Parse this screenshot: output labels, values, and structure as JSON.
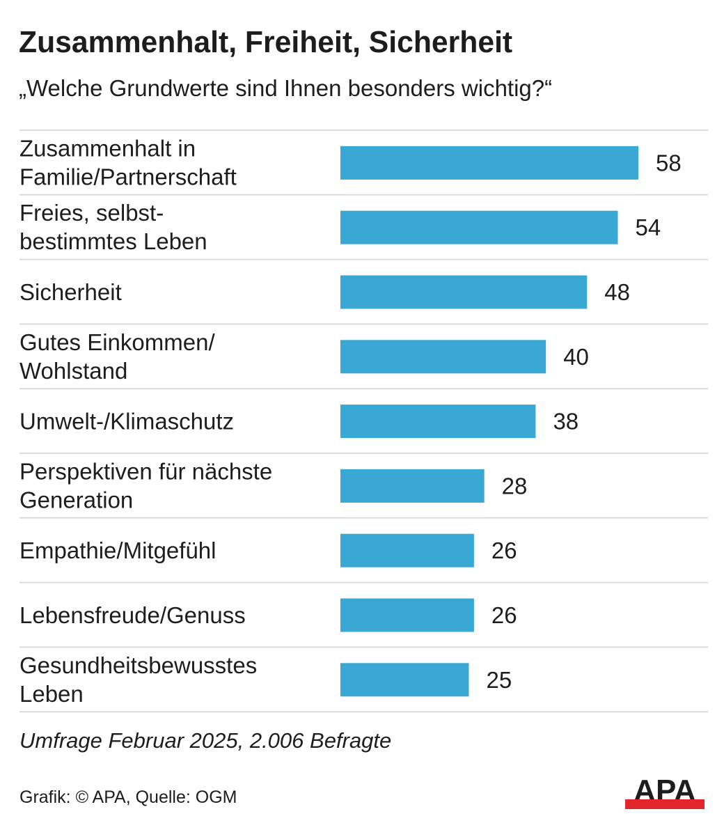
{
  "header": {
    "title": "Zusammenhalt, Freiheit, Sicherheit",
    "subtitle": "„Welche Grundwerte sind Ihnen besonders wichtig?“"
  },
  "footer": {
    "note": "Umfrage Februar 2025, 2.006 Befragte",
    "source": "Grafik: © APA, Quelle: OGM",
    "logo_text": "APA"
  },
  "colors": {
    "bar": "#3aa8d5",
    "separator": "#dcdcdc",
    "text": "#1d1d1b",
    "logo_black": "#1d1d1b",
    "logo_red": "#e3262b"
  },
  "chart_data": {
    "type": "bar",
    "orientation": "horizontal",
    "title": "Zusammenhalt, Freiheit, Sicherheit",
    "subtitle": "„Welche Grundwerte sind Ihnen besonders wichtig?“",
    "unit": "%",
    "categories": [
      [
        "Zusammenhalt in",
        "Familie/Partnerschaft"
      ],
      [
        "Freies, selbst-",
        "bestimmtes Leben"
      ],
      [
        "Sicherheit"
      ],
      [
        "Gutes Einkommen/",
        "Wohlstand"
      ],
      [
        "Umwelt-/Klimaschutz"
      ],
      [
        "Perspektiven für nächste",
        "Generation"
      ],
      [
        "Empathie/Mitgefühl"
      ],
      [
        "Lebensfreude/Genuss"
      ],
      [
        "Gesundheitsbewusstes",
        "Leben"
      ]
    ],
    "values": [
      58,
      54,
      48,
      40,
      38,
      28,
      26,
      26,
      25
    ],
    "xlim": [
      0,
      60
    ],
    "grid": false,
    "legend": "none",
    "data_labels": true
  }
}
